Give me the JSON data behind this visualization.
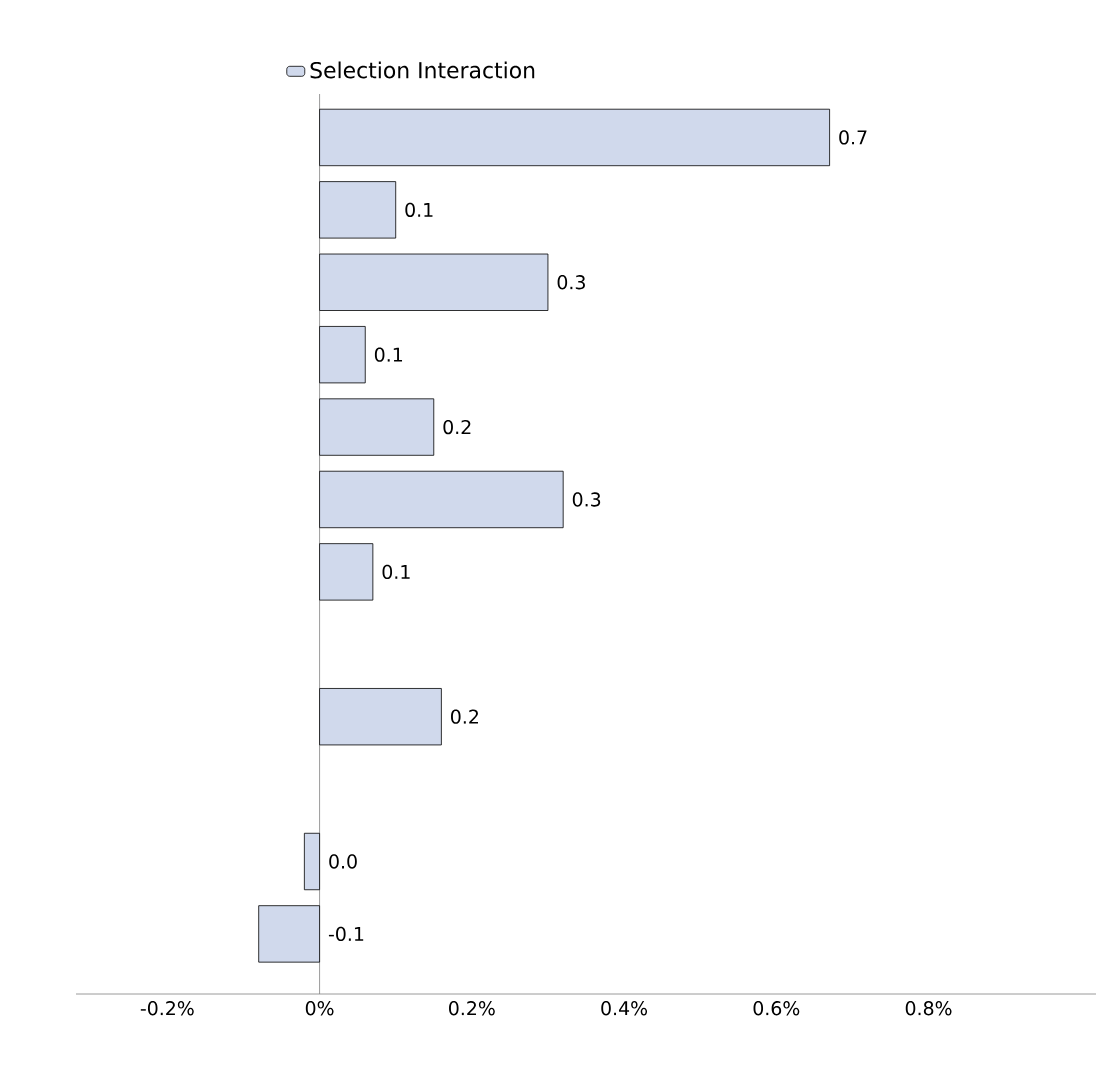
{
  "chart_data": {
    "type": "bar",
    "orientation": "horizontal",
    "categories": [
      null,
      null,
      null,
      null,
      null,
      null,
      null,
      null,
      null,
      null,
      null,
      null
    ],
    "series": [
      {
        "name": "Selection Interaction",
        "color": "#d0d9ec",
        "values": [
          0.67,
          0.1,
          0.3,
          0.06,
          0.15,
          0.32,
          0.07,
          null,
          0.16,
          null,
          -0.02,
          -0.08
        ],
        "value_labels": [
          "0.7",
          "0.1",
          "0.3",
          "0.1",
          "0.2",
          "0.3",
          "0.1",
          null,
          "0.2",
          null,
          "0.0",
          "-0.1"
        ]
      }
    ],
    "xlim": [
      -0.32,
      1.02
    ],
    "xticks": [
      {
        "value": -0.2,
        "label": "-0.2%"
      },
      {
        "value": 0,
        "label": "0%"
      },
      {
        "value": 0.2,
        "label": "0.2%"
      },
      {
        "value": 0.4,
        "label": "0.4%"
      },
      {
        "value": 0.6,
        "label": "0.6%"
      },
      {
        "value": 0.8,
        "label": "0.8%"
      }
    ],
    "ref_lines": [
      {
        "axis": "x",
        "value": 0,
        "color": "#808080"
      }
    ],
    "legend": "top left"
  }
}
